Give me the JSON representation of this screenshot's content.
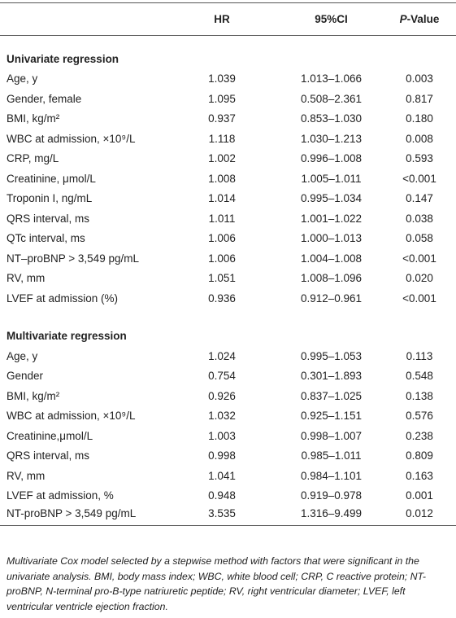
{
  "table": {
    "header": [
      "HR",
      "95%CI",
      {
        "em": "P",
        "text": "-Value"
      }
    ],
    "sections": [
      {
        "title": "Univariate regression",
        "rows": [
          [
            "Age, y",
            "1.039",
            "1.013–1.066",
            "0.003"
          ],
          [
            "Gender, female",
            "1.095",
            "0.508–2.361",
            "0.817"
          ],
          [
            "BMI, kg/m²",
            "0.937",
            "0.853–1.030",
            "0.180"
          ],
          [
            "WBC at admission, ×10⁹/L",
            "1.118",
            "1.030–1.213",
            "0.008"
          ],
          [
            "CRP, mg/L",
            "1.002",
            "0.996–1.008",
            "0.593"
          ],
          [
            "Creatinine, μmol/L",
            "1.008",
            "1.005–1.011",
            "<0.001"
          ],
          [
            "Troponin I, ng/mL",
            "1.014",
            "0.995–1.034",
            "0.147"
          ],
          [
            "QRS interval, ms",
            "1.011",
            "1.001–1.022",
            "0.038"
          ],
          [
            "QTc interval, ms",
            "1.006",
            "1.000–1.013",
            "0.058"
          ],
          [
            "NT–proBNP > 3,549 pg/mL",
            "1.006",
            "1.004–1.008",
            "<0.001"
          ],
          [
            "RV, mm",
            "1.051",
            "1.008–1.096",
            "0.020"
          ],
          [
            "LVEF at admission (%)",
            "0.936",
            "0.912–0.961",
            "<0.001"
          ]
        ]
      },
      {
        "title": "Multivariate regression",
        "rows": [
          [
            "Age, y",
            "1.024",
            "0.995–1.053",
            "0.113"
          ],
          [
            "Gender",
            "0.754",
            "0.301–1.893",
            "0.548"
          ],
          [
            "BMI, kg/m²",
            "0.926",
            "0.837–1.025",
            "0.138"
          ],
          [
            "WBC at admission, ×10⁹/L",
            "1.032",
            "0.925–1.151",
            "0.576"
          ],
          [
            "Creatinine,μmol/L",
            "1.003",
            "0.998–1.007",
            "0.238"
          ],
          [
            "QRS interval, ms",
            "0.998",
            "0.985–1.011",
            "0.809"
          ],
          [
            "RV, mm",
            "1.041",
            "0.984–1.101",
            "0.163"
          ],
          [
            "LVEF at admission, %",
            "0.948",
            "0.919–0.978",
            "0.001"
          ],
          [
            "NT-proBNP > 3,549 pg/mL",
            "3.535",
            "1.316–9.499",
            "0.012"
          ]
        ]
      }
    ],
    "footnote": "Multivariate Cox model selected by a stepwise method with factors that were significant in the univariate analysis. BMI, body mass index; WBC, white blood cell; CRP, C reactive protein; NT-proBNP, N-terminal pro-B-type natriuretic peptide; RV, right ventricular diameter; LVEF, left ventricular ventricle ejection fraction."
  }
}
